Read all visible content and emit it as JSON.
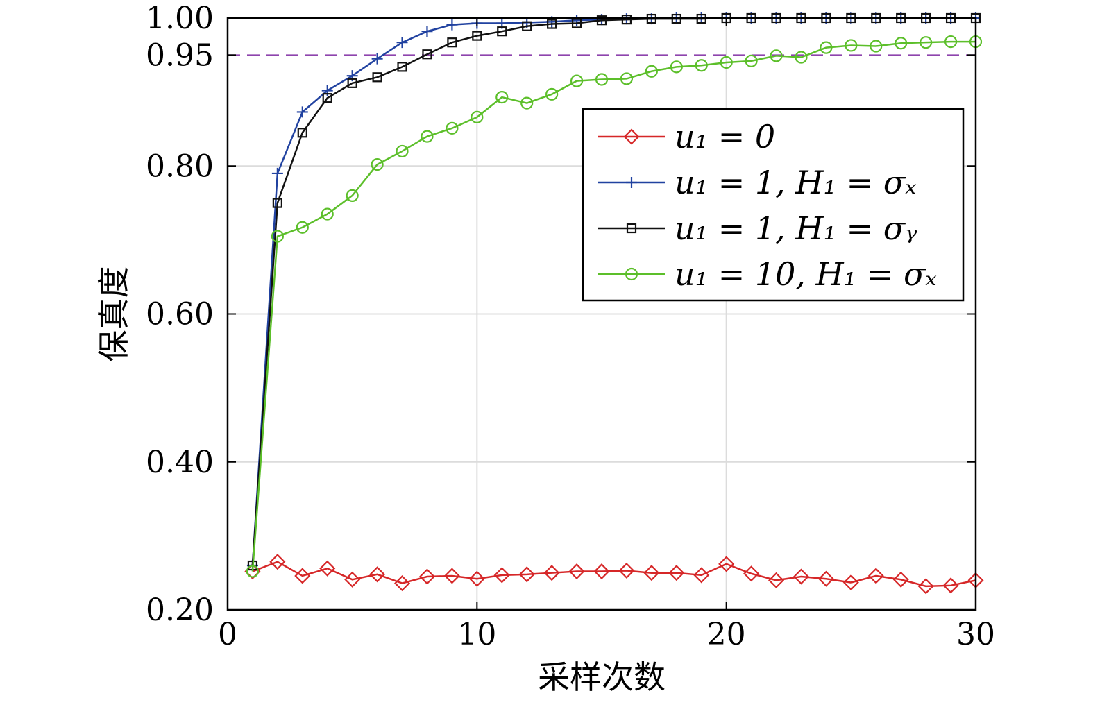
{
  "chart_data": {
    "type": "line",
    "xlabel": "采样次数",
    "ylabel": "保真度",
    "xlim": [
      0,
      30
    ],
    "ylim": [
      0.2,
      1.0
    ],
    "xticks": [
      "0",
      "10",
      "20",
      "30"
    ],
    "yticks": [
      "0.20",
      "0.40",
      "0.60",
      "0.80",
      "0.95",
      "1.00"
    ],
    "grid": true,
    "legend_position": "upper-right",
    "reference_line": {
      "y": 0.95,
      "color": "#8e44ad",
      "style": "dashed"
    },
    "x": [
      1,
      2,
      3,
      4,
      5,
      6,
      7,
      8,
      9,
      10,
      11,
      12,
      13,
      14,
      15,
      16,
      17,
      18,
      19,
      20,
      21,
      22,
      23,
      24,
      25,
      26,
      27,
      28,
      29,
      30
    ],
    "series": [
      {
        "name": "u1 = 0",
        "legend_label": "u₁ = 0",
        "color": "#d62728",
        "marker": "diamond",
        "values": [
          0.252,
          0.265,
          0.246,
          0.256,
          0.241,
          0.248,
          0.236,
          0.245,
          0.246,
          0.242,
          0.247,
          0.248,
          0.25,
          0.252,
          0.252,
          0.253,
          0.25,
          0.25,
          0.247,
          0.262,
          0.249,
          0.24,
          0.245,
          0.242,
          0.237,
          0.246,
          0.241,
          0.232,
          0.233,
          0.24
        ]
      },
      {
        "name": "u1 = 1, H1 = σx",
        "legend_label": "u₁ = 1, H₁ = σₓ",
        "color": "#2142a0",
        "marker": "plus",
        "values": [
          0.26,
          0.79,
          0.873,
          0.902,
          0.922,
          0.945,
          0.967,
          0.982,
          0.991,
          0.993,
          0.993,
          0.994,
          0.995,
          0.997,
          0.998,
          0.999,
          0.999,
          1.0,
          1.0,
          1.0,
          1.0,
          1.0,
          1.0,
          1.0,
          1.0,
          1.0,
          1.0,
          1.0,
          1.0,
          1.0
        ]
      },
      {
        "name": "u1 = 1, H1 = σy",
        "legend_label": "u₁ = 1, H₁ = σᵧ",
        "color": "#111111",
        "marker": "square",
        "values": [
          0.26,
          0.75,
          0.845,
          0.892,
          0.912,
          0.92,
          0.934,
          0.951,
          0.967,
          0.976,
          0.982,
          0.989,
          0.992,
          0.993,
          0.997,
          0.998,
          0.999,
          0.999,
          0.999,
          1.0,
          1.0,
          1.0,
          1.0,
          1.0,
          1.0,
          1.0,
          1.0,
          1.0,
          1.0,
          1.0
        ]
      },
      {
        "name": "u1 = 10, H1 = σx",
        "legend_label": "u₁ = 10, H₁ = σₓ",
        "color": "#5cbf2a",
        "marker": "circle",
        "values": [
          0.252,
          0.705,
          0.717,
          0.735,
          0.76,
          0.802,
          0.82,
          0.84,
          0.851,
          0.866,
          0.893,
          0.885,
          0.897,
          0.915,
          0.917,
          0.918,
          0.928,
          0.934,
          0.936,
          0.94,
          0.942,
          0.949,
          0.947,
          0.96,
          0.963,
          0.962,
          0.966,
          0.967,
          0.968,
          0.968
        ]
      }
    ]
  }
}
